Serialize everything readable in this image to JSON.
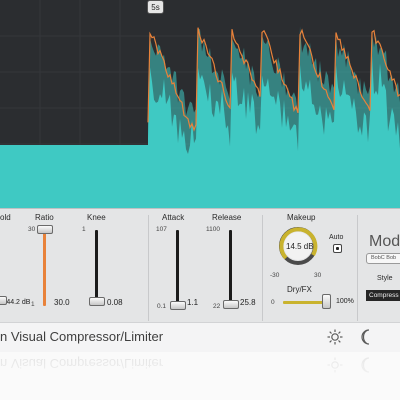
{
  "display": {
    "marker_label": "5s",
    "colors": {
      "background": "#2b2d30",
      "input": "#3fc9c3",
      "input_dark": "#2f8f8c",
      "gain": "#e8823a",
      "grid": "#3a3c40"
    }
  },
  "controls": {
    "threshold": {
      "label": "old",
      "value": "-44.2 dB"
    },
    "ratio": {
      "label": "Ratio",
      "max": "30",
      "min": "1",
      "value": "30.0",
      "level": 0.97
    },
    "knee": {
      "label": "Knee",
      "max": "1",
      "min": "0",
      "value": "0.08",
      "level": 0.08
    },
    "attack": {
      "label": "Attack",
      "max": "107",
      "min": "0.1",
      "value": "1.1",
      "level": 0.01
    },
    "release": {
      "label": "Release",
      "max": "1100",
      "min": "22",
      "value": "25.8",
      "level": 0.02
    },
    "makeup": {
      "label": "Makeup",
      "value": "14.5 dB",
      "min": "-30",
      "max": "30",
      "level": 0.74,
      "auto_label": "Auto"
    },
    "dryfx": {
      "label": "Dry/FX",
      "min": "0",
      "value": "100%",
      "level": 1.0
    },
    "mode": {
      "label": "Mod",
      "preset": "BobC Bob",
      "style_label": "Style",
      "style_value": "Compress"
    }
  },
  "titlebar": {
    "title": "n Visual Compressor/Limiter",
    "settings_icon": "gear-icon",
    "theme_icon": "moon-icon"
  }
}
